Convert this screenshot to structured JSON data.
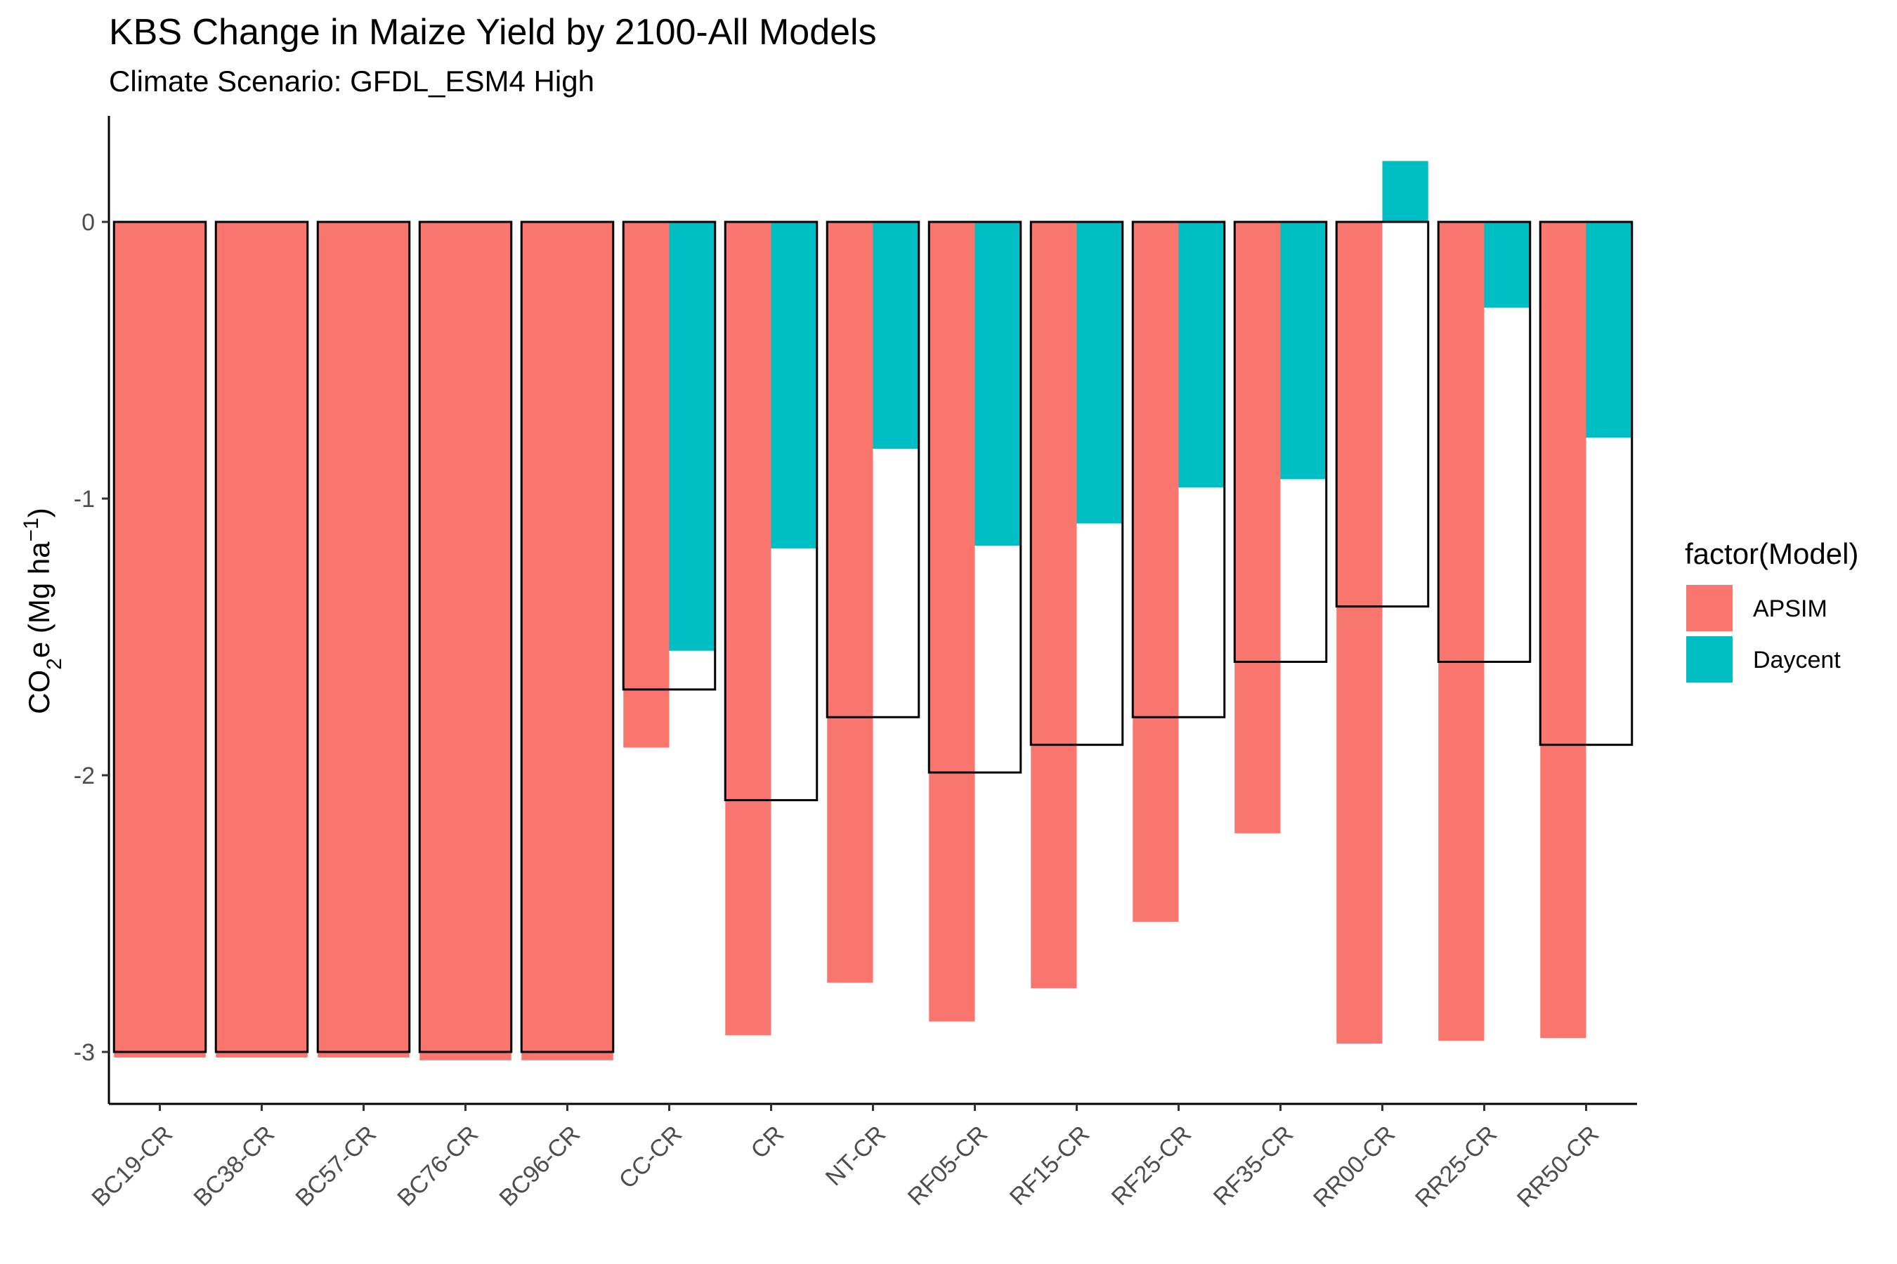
{
  "chart_data": {
    "type": "bar",
    "title": "KBS Change in Maize Yield by 2100-All Models",
    "subtitle": "Climate Scenario: GFDL_ESM4 High",
    "ylabel_main": "CO",
    "ylabel_sub": "2",
    "ylabel_rest": "e (Mg ha",
    "ylabel_sup": "−1",
    "ylabel_close": ")",
    "ylim": [
      -3.2,
      0.38
    ],
    "yticks": [
      0,
      -1,
      -2,
      -3
    ],
    "ytick_labels": [
      "0",
      "-1",
      "-2",
      "-3"
    ],
    "categories": [
      "BC19-CR",
      "BC38-CR",
      "BC57-CR",
      "BC76-CR",
      "BC96-CR",
      "CC-CR",
      "CR",
      "NT-CR",
      "RF05-CR",
      "RF15-CR",
      "RF25-CR",
      "RF35-CR",
      "RR00-CR",
      "RR25-CR",
      "RR50-CR"
    ],
    "legend_title": "factor(Model)",
    "legend_position": "right",
    "grid": false,
    "series": [
      {
        "name": "APSIM",
        "color": "#F8766D",
        "values": [
          -3.02,
          -3.02,
          -3.02,
          -3.03,
          -3.03,
          -1.9,
          -2.94,
          -2.75,
          -2.89,
          -2.77,
          -2.53,
          -2.21,
          -2.97,
          -2.96,
          -2.95
        ]
      },
      {
        "name": "Daycent",
        "color": "#00BFC4",
        "values": [
          null,
          null,
          null,
          null,
          null,
          -1.55,
          -1.18,
          -0.82,
          -1.17,
          -1.09,
          -0.96,
          -0.93,
          0.22,
          -0.31,
          -0.78
        ]
      }
    ],
    "outline_series": {
      "color": "#000000",
      "values": [
        -3.0,
        -3.0,
        -3.0,
        -3.0,
        -3.0,
        -1.69,
        -2.09,
        -1.79,
        -1.99,
        -1.89,
        -1.79,
        -1.59,
        -1.39,
        -1.59,
        -1.89
      ]
    }
  }
}
